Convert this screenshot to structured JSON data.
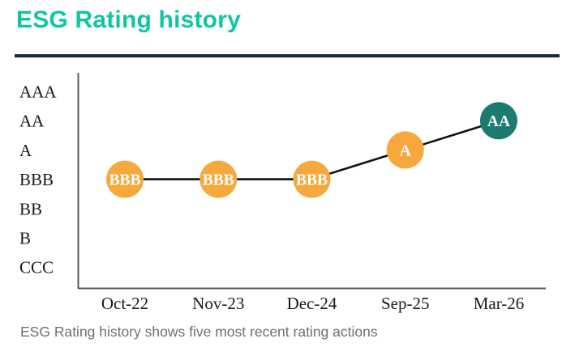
{
  "header": {
    "title": "ESG Rating history"
  },
  "caption": "ESG Rating history shows five most recent rating actions",
  "colors": {
    "title": "#10c5a5",
    "divider": "#1c2b3a",
    "axis": "#555a63",
    "connector_line": "#111111",
    "tick_label": "#1a1a1a",
    "caption": "#6b7076",
    "point_orange": "#f6a83c",
    "point_teal": "#1b7b70",
    "point_label": "#ffffff"
  },
  "chart_data": {
    "type": "line",
    "title": "ESG Rating history",
    "x": [
      "Oct-22",
      "Nov-23",
      "Dec-24",
      "Sep-25",
      "Mar-26"
    ],
    "y_categories": [
      "AAA",
      "AA",
      "A",
      "BBB",
      "BB",
      "B",
      "CCC"
    ],
    "points": [
      {
        "x": "Oct-22",
        "rating": "BBB",
        "color": "#f6a83c"
      },
      {
        "x": "Nov-23",
        "rating": "BBB",
        "color": "#f6a83c"
      },
      {
        "x": "Dec-24",
        "rating": "BBB",
        "color": "#f6a83c"
      },
      {
        "x": "Sep-25",
        "rating": "A",
        "color": "#f6a83c"
      },
      {
        "x": "Mar-26",
        "rating": "AA",
        "color": "#1b7b70"
      }
    ],
    "grid": false,
    "legend": false,
    "xlabel": "",
    "ylabel": ""
  }
}
